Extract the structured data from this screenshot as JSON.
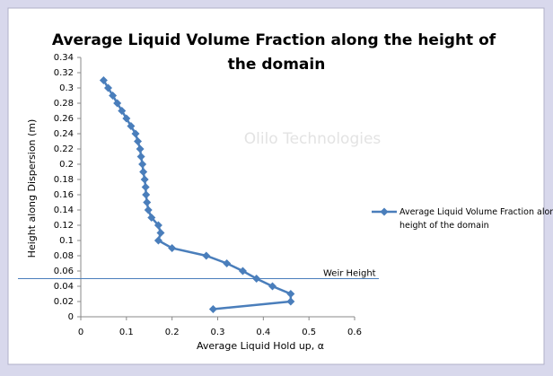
{
  "chart_data": {
    "type": "line",
    "title": "Average Liquid Volume Fraction along the height of the domain",
    "xlabel": "Average Liquid Hold up, α",
    "ylabel": "Height along Dispersion (m)",
    "watermark": "Olilo Technologies",
    "series": [
      {
        "name": "Average Liquid Volume Fraction along the height of the domain",
        "color": "#4a7ebb",
        "x": [
          0.29,
          0.46,
          0.46,
          0.42,
          0.385,
          0.355,
          0.32,
          0.275,
          0.2,
          0.17,
          0.175,
          0.17,
          0.155,
          0.148,
          0.145,
          0.143,
          0.142,
          0.14,
          0.137,
          0.135,
          0.132,
          0.13,
          0.125,
          0.12,
          0.11,
          0.1,
          0.09,
          0.08,
          0.07,
          0.06,
          0.05
        ],
        "values": [
          0.01,
          0.02,
          0.03,
          0.04,
          0.05,
          0.06,
          0.07,
          0.08,
          0.09,
          0.1,
          0.11,
          0.12,
          0.13,
          0.14,
          0.15,
          0.16,
          0.17,
          0.18,
          0.19,
          0.2,
          0.21,
          0.22,
          0.23,
          0.24,
          0.25,
          0.26,
          0.27,
          0.28,
          0.29,
          0.3,
          0.31
        ]
      }
    ],
    "annotations": [
      {
        "text": "Weir Height",
        "y": 0.05,
        "color": "#4a7ebb"
      }
    ],
    "xlim": [
      0,
      0.6
    ],
    "xticks": [
      0,
      0.1,
      0.2,
      0.3,
      0.4,
      0.5,
      0.6
    ],
    "ylim": [
      0,
      0.34
    ],
    "yticks": [
      0,
      0.02,
      0.04,
      0.06,
      0.08,
      0.1,
      0.12,
      0.14,
      0.16,
      0.18,
      0.2,
      0.22,
      0.24,
      0.26,
      0.28,
      0.3,
      0.32,
      0.34
    ],
    "grid": false,
    "legend": "right"
  }
}
